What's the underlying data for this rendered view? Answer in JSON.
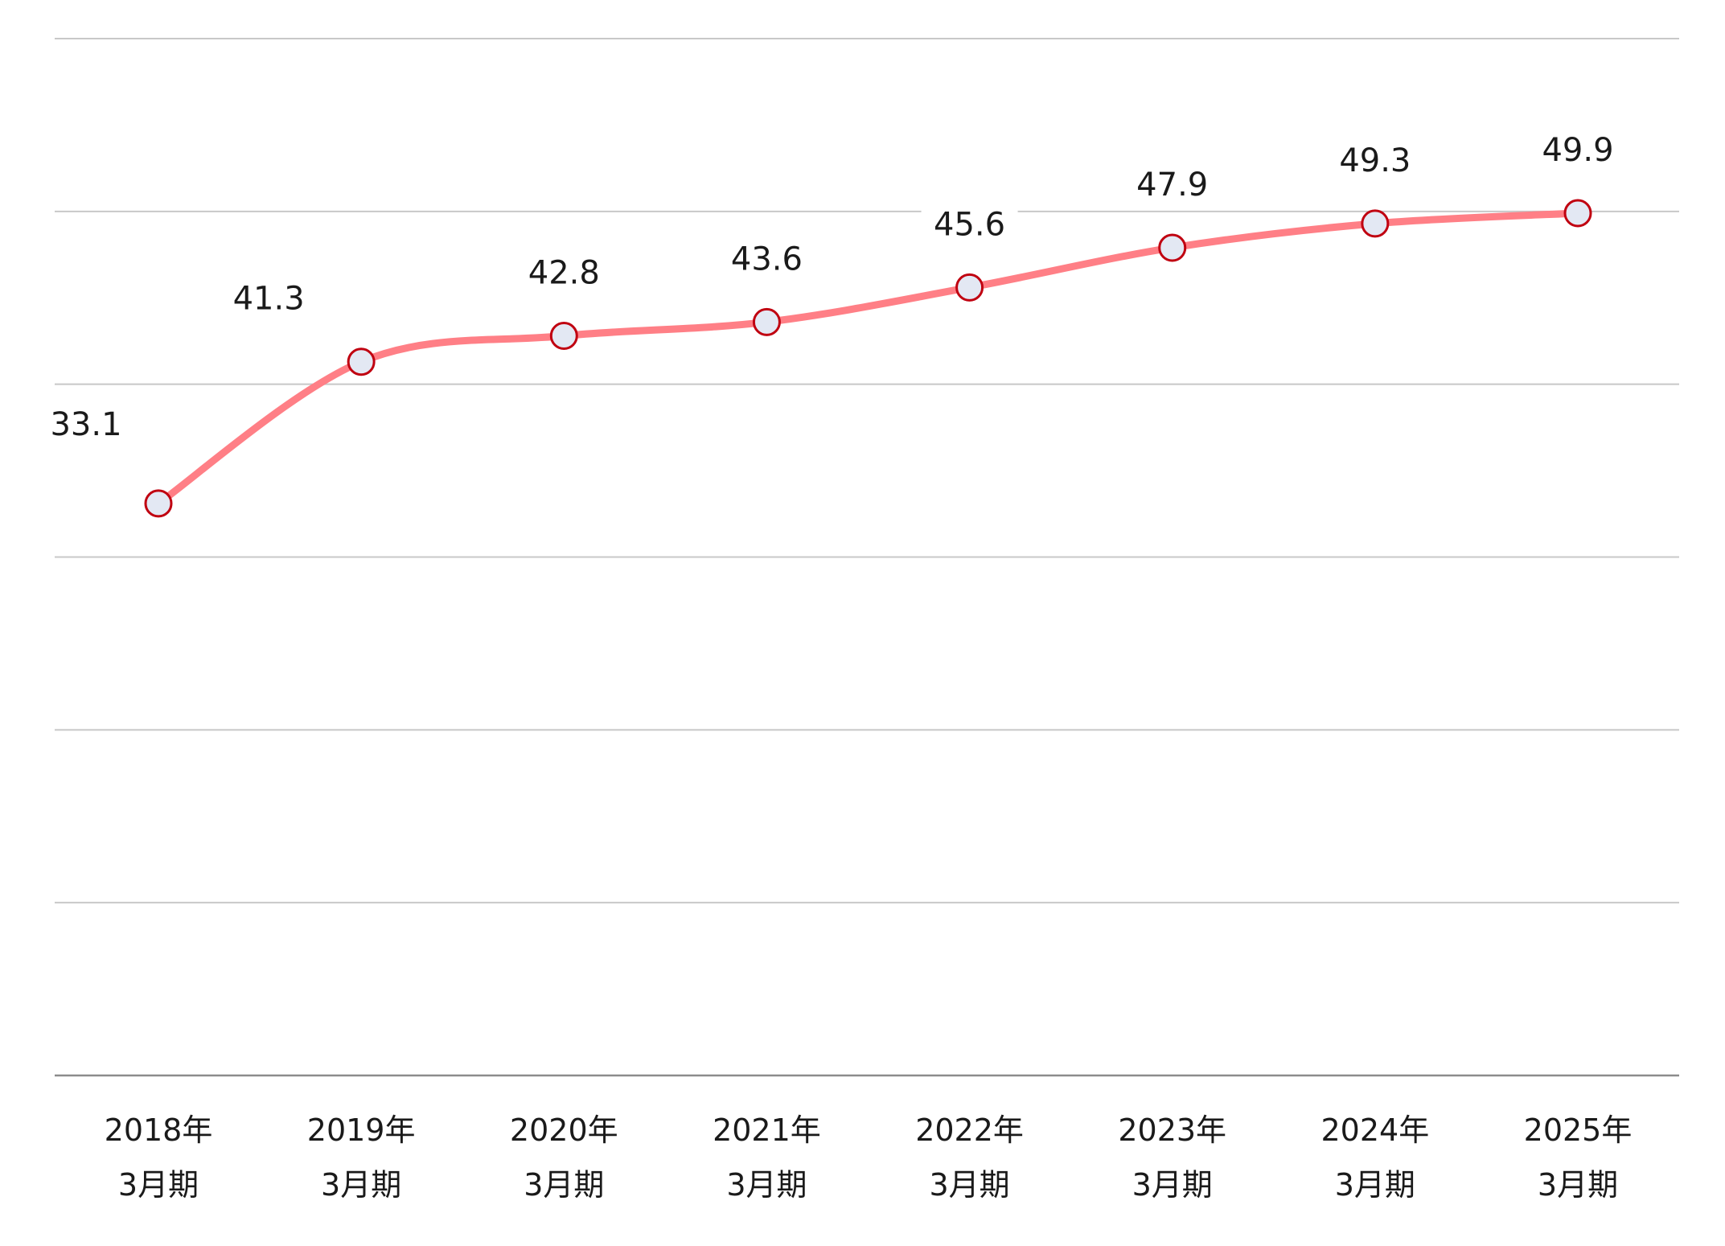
{
  "chart_data": {
    "type": "line",
    "categories": [
      [
        "2018年",
        "3月期"
      ],
      [
        "2019年",
        "3月期"
      ],
      [
        "2020年",
        "3月期"
      ],
      [
        "2021年",
        "3月期"
      ],
      [
        "2022年",
        "3月期"
      ],
      [
        "2023年",
        "3月期"
      ],
      [
        "2024年",
        "3月期"
      ],
      [
        "2025年",
        "3月期"
      ]
    ],
    "values": [
      33.1,
      41.3,
      42.8,
      43.6,
      45.6,
      47.9,
      49.3,
      49.9
    ],
    "data_labels": [
      "33.1",
      "41.3",
      "42.8",
      "43.6",
      "45.6",
      "47.9",
      "49.3",
      "49.9"
    ],
    "ylim": [
      0,
      60
    ],
    "y_gridlines": [
      10,
      20,
      30,
      40,
      50,
      60
    ],
    "grid": true,
    "legend": "none",
    "colors": {
      "line": "#ff7f86",
      "marker_fill": "#e3e8f3",
      "marker_stroke": "#c00010",
      "grid": "#c8c8c8",
      "baseline": "#8c8c8c",
      "text": "#1a1a1a"
    }
  }
}
